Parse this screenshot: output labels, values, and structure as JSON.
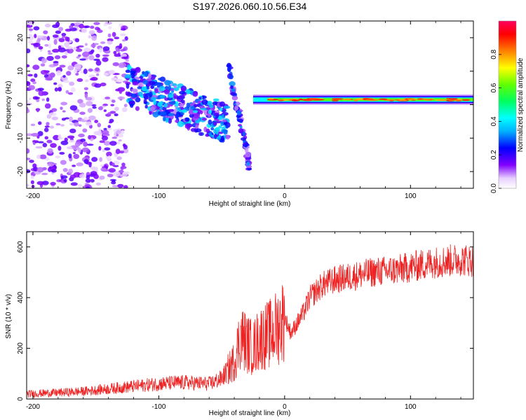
{
  "title": "S197.2026.060.10.56.E34",
  "chart_data": [
    {
      "type": "heatmap",
      "name": "spectrogram",
      "xlabel": "Height of straight line (km)",
      "ylabel": "Frequency (Hz)",
      "xlim": [
        -205,
        150
      ],
      "ylim": [
        -25,
        25
      ],
      "xticks": [
        -200,
        -100,
        0,
        100
      ],
      "yticks": [
        -20,
        -10,
        0,
        10,
        20
      ],
      "colorbar": {
        "label": "Normalized spectral amplitude",
        "range": [
          0,
          1
        ],
        "ticks": [
          0.0,
          0.2,
          0.4,
          0.6,
          0.8
        ],
        "tick_labels": [
          "0.0",
          "0.2",
          "0.4",
          "0.6",
          "0.8"
        ]
      },
      "features": [
        {
          "description": "scattered noise",
          "x_range": [
            -205,
            -125
          ],
          "freq_range": [
            -25,
            25
          ],
          "amplitude": 0.1
        },
        {
          "description": "descending scatter band",
          "x_range": [
            -125,
            -45
          ],
          "freq_start": 6,
          "freq_end": -6,
          "amplitude": 0.25
        },
        {
          "description": "steep descending trace",
          "x_range": [
            -45,
            -28
          ],
          "freq_start": 12,
          "freq_end": -18,
          "amplitude": 0.2
        },
        {
          "description": "strong carrier line",
          "x_range": [
            -25,
            150
          ],
          "freq": 1.5,
          "amplitude": 0.85
        }
      ]
    },
    {
      "type": "line",
      "name": "snr",
      "xlabel": "Height of straight line (km)",
      "ylabel": "SNR (10 * v/v)",
      "xlim": [
        -205,
        150
      ],
      "ylim": [
        0,
        660
      ],
      "xticks": [
        -200,
        -100,
        0,
        100
      ],
      "yticks": [
        0,
        200,
        400,
        600
      ],
      "series": [
        {
          "name": "SNR",
          "color": "#ee2222",
          "x": [
            -205,
            -180,
            -160,
            -140,
            -120,
            -100,
            -80,
            -60,
            -50,
            -40,
            -35,
            -30,
            -25,
            -20,
            -15,
            -10,
            -5,
            0,
            5,
            10,
            15,
            20,
            30,
            40,
            50,
            60,
            70,
            80,
            90,
            100,
            110,
            120,
            130,
            140,
            150
          ],
          "y": [
            20,
            25,
            30,
            40,
            50,
            60,
            65,
            60,
            80,
            150,
            250,
            220,
            200,
            240,
            250,
            260,
            290,
            320,
            260,
            300,
            340,
            400,
            450,
            470,
            480,
            490,
            500,
            505,
            510,
            520,
            530,
            540,
            545,
            550,
            545
          ]
        }
      ]
    }
  ]
}
